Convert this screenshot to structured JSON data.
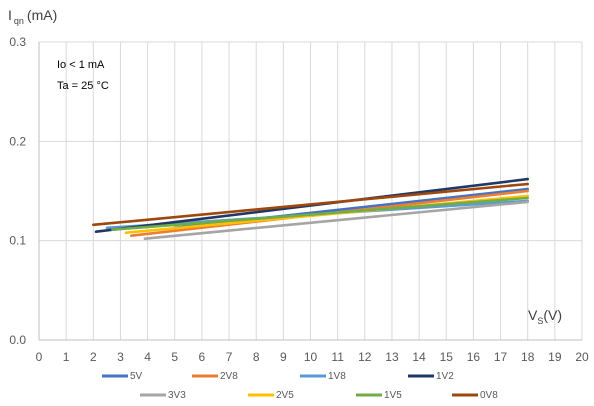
{
  "chart_data": {
    "type": "line",
    "ylabel": {
      "main": "I",
      "sub": "qn",
      "unit": "(mA)"
    },
    "xlabel": {
      "main": "V",
      "sub": "S",
      "unit": "(V)"
    },
    "annotations": [
      "Io < 1 mA",
      "Ta = 25 °C"
    ],
    "xlim": [
      0,
      20
    ],
    "ylim": [
      0,
      0.3
    ],
    "x_ticks": [
      "0",
      "1",
      "2",
      "3",
      "4",
      "5",
      "6",
      "7",
      "8",
      "9",
      "10",
      "11",
      "12",
      "13",
      "14",
      "15",
      "16",
      "17",
      "18",
      "19",
      "20"
    ],
    "y_ticks": [
      "0.0",
      "0.1",
      "0.2",
      "0.3"
    ],
    "grid": true,
    "legend_position": "bottom",
    "series": [
      {
        "name": "5V",
        "color": "#4472c4",
        "points": [
          [
            5.0,
            0.113
          ],
          [
            18,
            0.152
          ]
        ]
      },
      {
        "name": "2V8",
        "color": "#ed7d31",
        "points": [
          [
            3.4,
            0.105
          ],
          [
            18,
            0.15
          ]
        ]
      },
      {
        "name": "1V8",
        "color": "#5b9bd5",
        "points": [
          [
            2.5,
            0.113
          ],
          [
            18,
            0.14
          ]
        ]
      },
      {
        "name": "1V2",
        "color": "#203864",
        "points": [
          [
            2.1,
            0.109
          ],
          [
            18,
            0.162
          ]
        ]
      },
      {
        "name": "3V3",
        "color": "#a5a5a5",
        "points": [
          [
            3.9,
            0.102
          ],
          [
            18,
            0.139
          ]
        ]
      },
      {
        "name": "2V5",
        "color": "#ffc000",
        "points": [
          [
            3.2,
            0.108
          ],
          [
            18,
            0.145
          ]
        ]
      },
      {
        "name": "1V5",
        "color": "#70ad47",
        "points": [
          [
            2.7,
            0.111
          ],
          [
            18,
            0.143
          ]
        ]
      },
      {
        "name": "0V8",
        "color": "#9e480e",
        "points": [
          [
            2.0,
            0.116
          ],
          [
            18,
            0.157
          ]
        ]
      }
    ]
  }
}
